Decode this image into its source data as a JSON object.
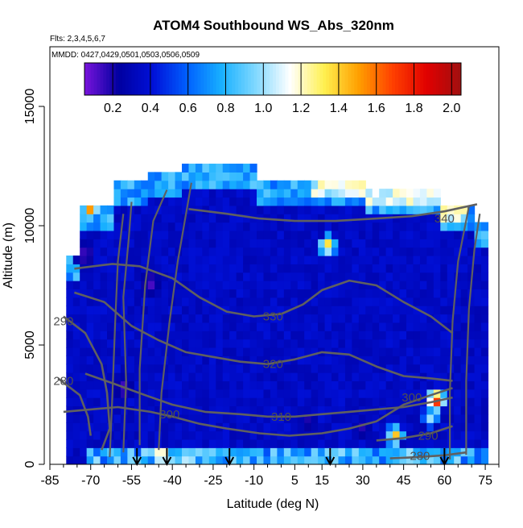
{
  "chart_data": {
    "type": "heatmap",
    "title": "ATOM4 Southbound WS_Abs_320nm",
    "flights_label": "Flts: 2,3,4,5,6,7",
    "dates_label": "MMDD: 0427,0429,0501,0503,0506,0509",
    "xlabel": "Latitude (deg N)",
    "ylabel": "Altitude (m)",
    "xlim": [
      -85,
      80
    ],
    "ylim": [
      0,
      17500
    ],
    "x_ticks": [
      -85,
      -70,
      -55,
      -40,
      -25,
      -10,
      5,
      15,
      30,
      45,
      60,
      75
    ],
    "y_ticks": [
      0,
      5000,
      10000,
      15000
    ],
    "colorbar": {
      "range": [
        0.05,
        2.05
      ],
      "ticks": [
        0.2,
        0.4,
        0.6,
        0.8,
        1.0,
        1.2,
        1.4,
        1.6,
        1.8,
        2.0
      ],
      "tick_labels": [
        "0.2",
        "0.4",
        "0.6",
        "0.8",
        "1.0",
        "1.2",
        "1.4",
        "1.6",
        "1.8",
        "2.0"
      ],
      "color_stops": [
        "#7a14dc",
        "#0000a0",
        "#0010d8",
        "#0060ff",
        "#18b0ff",
        "#80d8ff",
        "#ffffff",
        "#fff050",
        "#ffa000",
        "#ff4000",
        "#e00000",
        "#a01010"
      ]
    },
    "field_base_value": 0.35,
    "field_description_values": {
      "background": 0.35,
      "upper_edge": 0.75,
      "top_patch": 1.1
    },
    "hot_spots": [
      {
        "lat": -70,
        "alt": 10700,
        "value": 1.6
      },
      {
        "lat": 17,
        "alt": 9200,
        "value": 1.5
      },
      {
        "lat": 57,
        "alt": 2700,
        "value": 1.9
      },
      {
        "lat": 42,
        "alt": 1200,
        "value": 1.5
      },
      {
        "lat": -44,
        "alt": 400,
        "value": 1.6
      },
      {
        "lat": -36,
        "alt": 300,
        "value": 1.3
      },
      {
        "lat": 55,
        "alt": 2000,
        "value": 1.1
      },
      {
        "lat": 74,
        "alt": 350,
        "value": 0.9
      }
    ],
    "purple_spots": [
      {
        "lat": -72,
        "alt": 8800,
        "value": 0.1
      },
      {
        "lat": -48,
        "alt": 7600,
        "value": 0.1
      },
      {
        "lat": -58,
        "alt": 3200,
        "value": 0.1
      },
      {
        "lat": 10,
        "alt": 1800,
        "value": 0.15
      },
      {
        "lat": 30,
        "alt": 1500,
        "value": 0.15
      }
    ],
    "contour_labels": [
      {
        "text": "340",
        "lat": 60,
        "alt": 10300
      },
      {
        "text": "330",
        "lat": -3,
        "alt": 6200
      },
      {
        "text": "320",
        "lat": -3,
        "alt": 4200
      },
      {
        "text": "310",
        "lat": 0,
        "alt": 2000
      },
      {
        "text": "300",
        "lat": -41,
        "alt": 2100
      },
      {
        "text": "300",
        "lat": 48,
        "alt": 2800
      },
      {
        "text": "290",
        "lat": -80,
        "alt": 6000
      },
      {
        "text": "290",
        "lat": 54,
        "alt": 1200
      },
      {
        "text": "280",
        "lat": -80,
        "alt": 3500
      },
      {
        "text": "280",
        "lat": 51,
        "alt": 350
      }
    ],
    "contours": [
      {
        "level": 340,
        "points": [
          [
            -34,
            10700
          ],
          [
            -20,
            10500
          ],
          [
            -8,
            10300
          ],
          [
            5,
            10200
          ],
          [
            20,
            10200
          ],
          [
            35,
            10300
          ],
          [
            48,
            10400
          ],
          [
            60,
            10600
          ],
          [
            72,
            10900
          ]
        ]
      },
      {
        "level": 330,
        "points": [
          [
            -76,
            8200
          ],
          [
            -62,
            8400
          ],
          [
            -52,
            8300
          ],
          [
            -40,
            7800
          ],
          [
            -30,
            7000
          ],
          [
            -20,
            6400
          ],
          [
            -10,
            6200
          ],
          [
            0,
            6300
          ],
          [
            8,
            6700
          ],
          [
            15,
            7300
          ],
          [
            25,
            7700
          ],
          [
            35,
            7500
          ],
          [
            45,
            6800
          ],
          [
            55,
            6200
          ],
          [
            63,
            5500
          ]
        ]
      },
      {
        "level": 320,
        "points": [
          [
            -76,
            7200
          ],
          [
            -65,
            6800
          ],
          [
            -55,
            5800
          ],
          [
            -45,
            5200
          ],
          [
            -35,
            4700
          ],
          [
            -25,
            4500
          ],
          [
            -15,
            4300
          ],
          [
            -5,
            4200
          ],
          [
            5,
            4400
          ],
          [
            15,
            4700
          ],
          [
            25,
            4600
          ],
          [
            35,
            4100
          ],
          [
            45,
            3700
          ],
          [
            55,
            3600
          ],
          [
            63,
            3500
          ]
        ]
      },
      {
        "level": 310,
        "points": [
          [
            -72,
            3800
          ],
          [
            -62,
            3400
          ],
          [
            -50,
            2900
          ],
          [
            -40,
            2500
          ],
          [
            -28,
            2200
          ],
          [
            -15,
            2100
          ],
          [
            -5,
            2000
          ],
          [
            5,
            2000
          ],
          [
            15,
            2100
          ],
          [
            25,
            2200
          ],
          [
            35,
            2300
          ],
          [
            45,
            2400
          ],
          [
            55,
            2600
          ],
          [
            63,
            2800
          ]
        ]
      },
      {
        "level": 300,
        "points": [
          [
            -80,
            2200
          ],
          [
            -70,
            2300
          ],
          [
            -60,
            2400
          ],
          [
            -48,
            2200
          ],
          [
            -40,
            2000
          ],
          [
            -30,
            1700
          ],
          [
            -20,
            1500
          ],
          [
            -8,
            1300
          ],
          [
            3,
            1200
          ],
          [
            15,
            1300
          ],
          [
            25,
            1500
          ],
          [
            35,
            1800
          ],
          [
            45,
            2500
          ],
          [
            55,
            2900
          ],
          [
            63,
            3200
          ]
        ]
      },
      {
        "level": 290,
        "points": [
          [
            -80,
            6200
          ],
          [
            -72,
            5500
          ],
          [
            -66,
            4200
          ],
          [
            -64,
            3000
          ],
          [
            -63,
            1500
          ],
          [
            -66,
            600
          ]
        ]
      },
      {
        "level": 290,
        "points": [
          [
            35,
            1000
          ],
          [
            45,
            1100
          ],
          [
            55,
            1300
          ],
          [
            63,
            1600
          ]
        ]
      },
      {
        "level": 280,
        "points": [
          [
            -82,
            3600
          ],
          [
            -74,
            2900
          ],
          [
            -71,
            2000
          ],
          [
            -70,
            1200
          ]
        ]
      },
      {
        "level": 280,
        "points": [
          [
            40,
            250
          ],
          [
            50,
            300
          ],
          [
            60,
            380
          ],
          [
            68,
            500
          ]
        ]
      }
    ],
    "profile_lines": [
      {
        "points": [
          [
            -63,
            300
          ],
          [
            -62,
            3000
          ],
          [
            -61,
            6000
          ],
          [
            -60,
            8500
          ],
          [
            -58,
            10500
          ]
        ]
      },
      {
        "points": [
          [
            -58,
            500
          ],
          [
            -57,
            3500
          ],
          [
            -58,
            7000
          ],
          [
            -56,
            9500
          ],
          [
            -55,
            11000
          ]
        ]
      },
      {
        "points": [
          [
            -52,
            800
          ],
          [
            -52,
            4000
          ],
          [
            -50,
            7500
          ],
          [
            -47,
            10200
          ],
          [
            -42,
            11500
          ]
        ]
      },
      {
        "points": [
          [
            -45,
            600
          ],
          [
            -44,
            3000
          ],
          [
            -41,
            6000
          ],
          [
            -38,
            8500
          ],
          [
            -33,
            11800
          ]
        ]
      },
      {
        "points": [
          [
            62,
            200
          ],
          [
            62,
            3000
          ],
          [
            63,
            6000
          ],
          [
            65,
            8500
          ],
          [
            69,
            10800
          ]
        ]
      },
      {
        "points": [
          [
            68,
            400
          ],
          [
            68,
            3500
          ],
          [
            69,
            6500
          ],
          [
            71,
            9000
          ],
          [
            73,
            10500
          ]
        ]
      }
    ],
    "arrow_latitudes": [
      -53,
      -42,
      -19,
      18,
      60
    ]
  }
}
